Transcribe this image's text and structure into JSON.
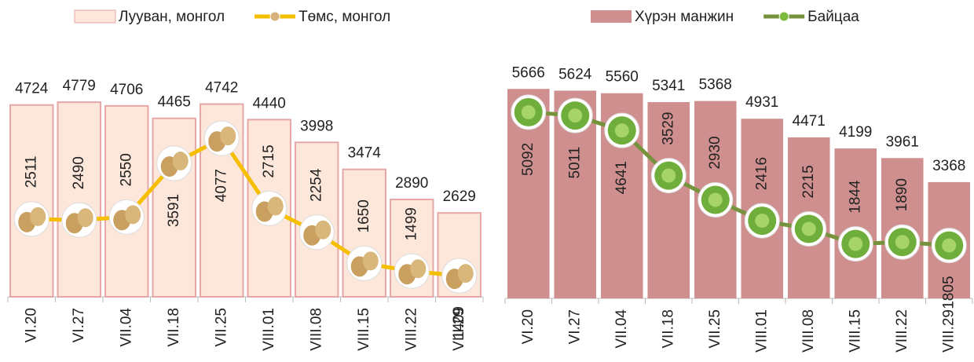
{
  "chart_data": [
    {
      "type": "combo",
      "categories": [
        "VI.20",
        "VI.27",
        "VII.04",
        "VII.18",
        "VII.25",
        "VIII.01",
        "VIII.08",
        "VIII.15",
        "VIII.22",
        "VIII.29"
      ],
      "series": [
        {
          "name": "Лууван, монгол",
          "type": "bar",
          "color": "#fde6da",
          "values": [
            4724,
            4779,
            4706,
            4465,
            4742,
            4440,
            3998,
            3474,
            2890,
            2629
          ]
        },
        {
          "name": "Төмс, монгол",
          "type": "line",
          "axis": "y2",
          "color": "#f5bf00",
          "values": [
            2511,
            2490,
            2550,
            3591,
            4077,
            2715,
            2254,
            1650,
            1499,
            1409
          ]
        }
      ],
      "ylim": [
        1000,
        6000
      ],
      "y2lim": [
        1000,
        6000
      ]
    },
    {
      "type": "combo",
      "categories": [
        "VI.20",
        "VI.27",
        "VII.04",
        "VII.18",
        "VII.25",
        "VIII.01",
        "VIII.08",
        "VIII.15",
        "VIII.22",
        "VIII.29"
      ],
      "series": [
        {
          "name": "Хүрэн манжин",
          "type": "bar",
          "color": "#cf8f8f",
          "values": [
            5666,
            5624,
            5560,
            5341,
            5368,
            4931,
            4471,
            4199,
            3961,
            3368
          ]
        },
        {
          "name": "Байцаа",
          "type": "line",
          "axis": "y2",
          "color": "#76923c",
          "values": [
            5092,
            5011,
            4641,
            3529,
            2930,
            2416,
            2215,
            1844,
            1890,
            1805
          ]
        }
      ],
      "ylim": [
        500,
        6000
      ],
      "y2lim": [
        500,
        6000
      ]
    }
  ]
}
